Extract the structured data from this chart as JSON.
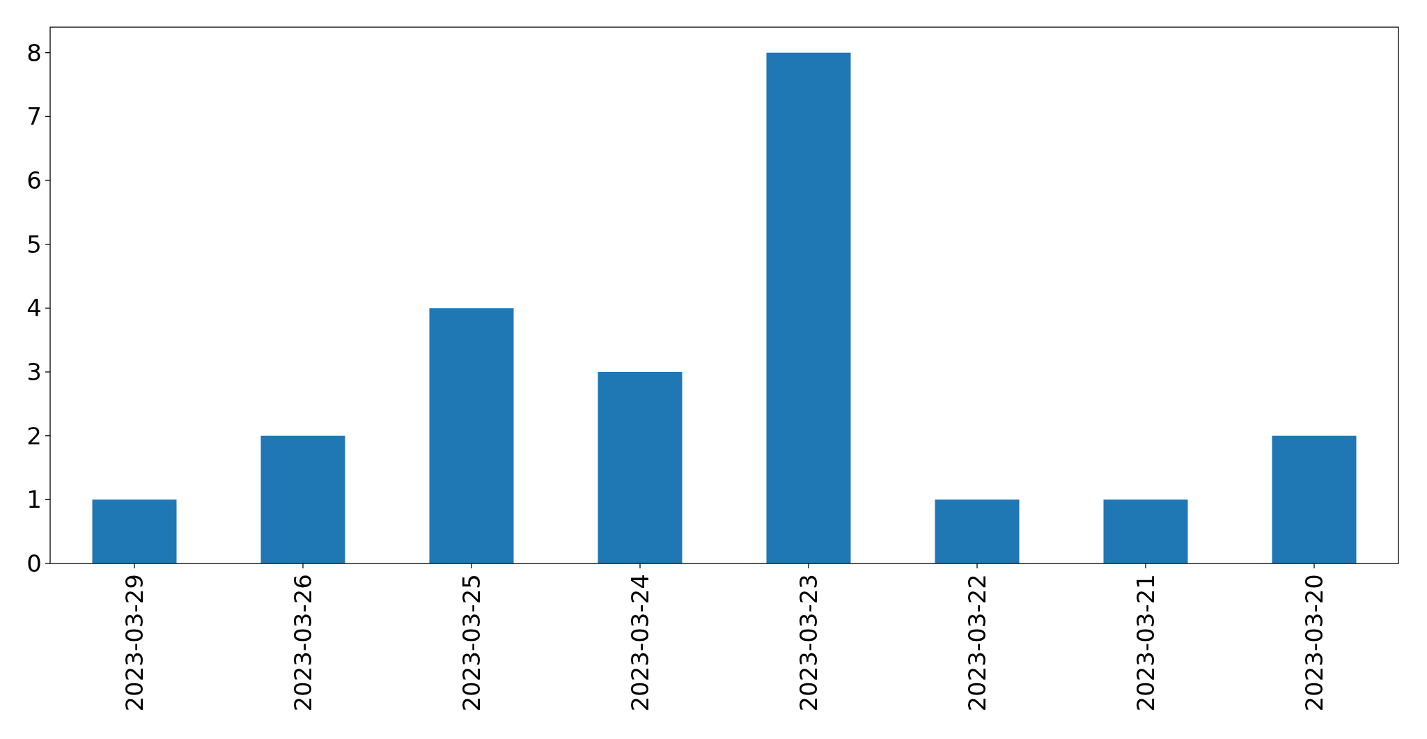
{
  "chart_data": {
    "type": "bar",
    "categories": [
      "2023-03-29",
      "2023-03-26",
      "2023-03-25",
      "2023-03-24",
      "2023-03-23",
      "2023-03-22",
      "2023-03-21",
      "2023-03-20"
    ],
    "values": [
      1,
      2,
      4,
      3,
      8,
      1,
      1,
      2
    ],
    "color": "#1f77b4",
    "ylim": [
      0,
      8.4
    ],
    "yticks": [
      0,
      1,
      2,
      3,
      4,
      5,
      6,
      7,
      8
    ]
  }
}
